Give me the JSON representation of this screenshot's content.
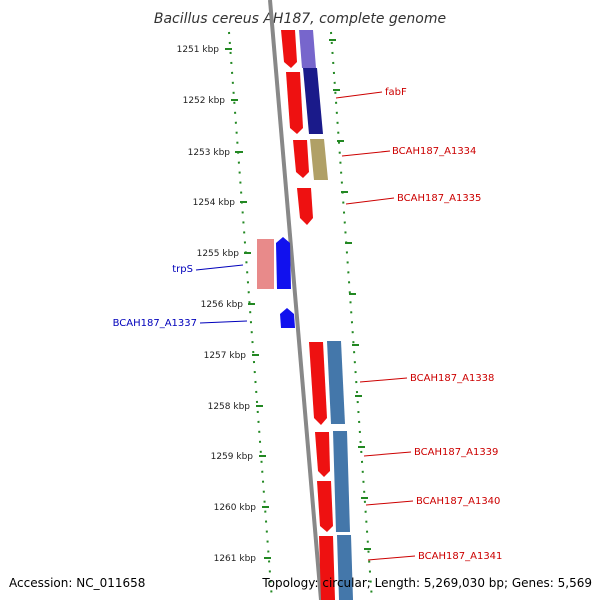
{
  "header": {
    "title": "Bacillus cereus AH187, complete genome"
  },
  "footer": {
    "accession": "Accession: NC_011658",
    "summary": "Topology: circular; Length: 5,269,030 bp; Genes: 5,569"
  },
  "colors": {
    "backbone": "#888888",
    "tick": "#228822",
    "cds_red": "#ee1111",
    "cds_blue": "#1111ee",
    "cds_pink": "#e88a8a",
    "label_red": "#cc0000",
    "label_blue": "#0000bb"
  },
  "kbp_labels": [
    "1251 kbp",
    "1252 kbp",
    "1253 kbp",
    "1254 kbp",
    "1255 kbp",
    "1256 kbp",
    "1257 kbp",
    "1258 kbp",
    "1259 kbp",
    "1260 kbp",
    "1261 kbp"
  ],
  "gene_labels": [
    {
      "text": "fabF",
      "strand": "forward"
    },
    {
      "text": "BCAH187_A1334",
      "strand": "forward"
    },
    {
      "text": "BCAH187_A1335",
      "strand": "forward"
    },
    {
      "text": "trpS",
      "strand": "reverse"
    },
    {
      "text": "BCAH187_A1337",
      "strand": "reverse"
    },
    {
      "text": "BCAH187_A1338",
      "strand": "forward"
    },
    {
      "text": "BCAH187_A1339",
      "strand": "forward"
    },
    {
      "text": "BCAH187_A1340",
      "strand": "forward"
    },
    {
      "text": "BCAH187_A1341",
      "strand": "forward"
    }
  ]
}
